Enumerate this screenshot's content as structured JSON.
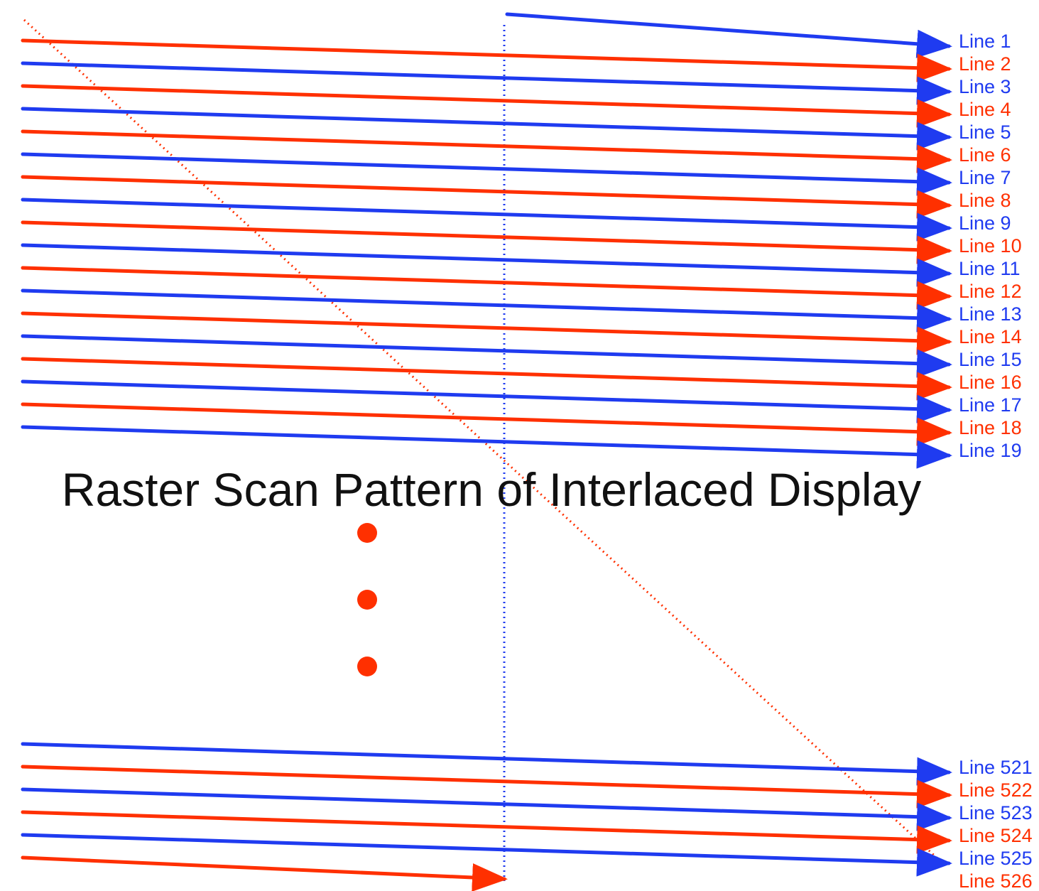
{
  "title": "Raster Scan Pattern of Interlaced Display",
  "colors": {
    "odd_field": "#1f3bf0",
    "even_field": "#ff3000",
    "title": "#111111"
  },
  "top_lines": [
    {
      "label": "Line 1",
      "field": "odd"
    },
    {
      "label": "Line 2",
      "field": "even"
    },
    {
      "label": "Line 3",
      "field": "odd"
    },
    {
      "label": "Line 4",
      "field": "even"
    },
    {
      "label": "Line 5",
      "field": "odd"
    },
    {
      "label": "Line 6",
      "field": "even"
    },
    {
      "label": "Line 7",
      "field": "odd"
    },
    {
      "label": "Line 8",
      "field": "even"
    },
    {
      "label": "Line 9",
      "field": "odd"
    },
    {
      "label": "Line 10",
      "field": "even"
    },
    {
      "label": "Line 11",
      "field": "odd"
    },
    {
      "label": "Line 12",
      "field": "even"
    },
    {
      "label": "Line 13",
      "field": "odd"
    },
    {
      "label": "Line 14",
      "field": "even"
    },
    {
      "label": "Line 15",
      "field": "odd"
    },
    {
      "label": "Line 16",
      "field": "even"
    },
    {
      "label": "Line 17",
      "field": "odd"
    },
    {
      "label": "Line 18",
      "field": "even"
    },
    {
      "label": "Line 19",
      "field": "odd"
    }
  ],
  "bottom_lines": [
    {
      "label": "Line 521",
      "field": "odd"
    },
    {
      "label": "Line 522",
      "field": "even"
    },
    {
      "label": "Line 523",
      "field": "odd"
    },
    {
      "label": "Line 524",
      "field": "even"
    },
    {
      "label": "Line 525",
      "field": "odd"
    },
    {
      "label": "Line 526",
      "field": "even"
    }
  ],
  "ellipsis_dots": 3
}
